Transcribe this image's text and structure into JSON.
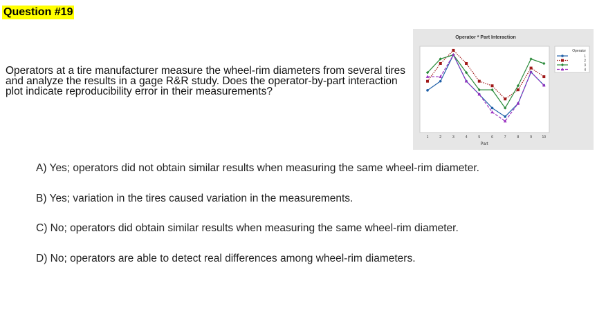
{
  "question_label": "Question #19",
  "question_text": "Operators at a tire manufacturer measure the wheel-rim diameters from several tires and analyze the results in a gage R&R study. Does the operator-by-part interaction plot indicate reproducibility error in their measurements?",
  "answers": [
    "A) Yes; operators did not obtain similar results when measuring the same wheel-rim diameter.",
    "B) Yes; variation in the tires caused variation in the measurements.",
    "C) No; operators did obtain similar results when measuring the same wheel-rim diameter.",
    "D) No; operators are able to detect real differences among wheel-rim diameters."
  ],
  "chart_data": {
    "type": "line",
    "title": "Operator * Part Interaction",
    "xlabel": "Part",
    "ylabel": "",
    "categories": [
      "1",
      "2",
      "3",
      "4",
      "5",
      "6",
      "7",
      "8",
      "9",
      "10"
    ],
    "ylim": [
      0,
      19
    ],
    "y_ticks_shown": false,
    "legend_title": "Operator",
    "legend_position": "right",
    "series": [
      {
        "name": "1",
        "color": "#1f5fa8",
        "dash": "solid",
        "marker": "circle",
        "values": [
          9.3,
          11.3,
          17.1,
          11.3,
          8.4,
          5.4,
          3.5,
          6.4,
          13.3,
          10.4
        ]
      },
      {
        "name": "2",
        "color": "#a01818",
        "dash": "dotted",
        "marker": "square",
        "values": [
          11.3,
          15.2,
          18.1,
          15.2,
          11.3,
          10.3,
          7.4,
          9.4,
          14.2,
          12.3
        ]
      },
      {
        "name": "3",
        "color": "#2a8a3a",
        "dash": "solid",
        "marker": "diamond",
        "values": [
          13.2,
          16.2,
          17.1,
          13.2,
          9.4,
          9.4,
          5.4,
          10.3,
          16.2,
          15.2
        ]
      },
      {
        "name": "4",
        "color": "#9a2fc0",
        "dash": "dashed",
        "marker": "triangle",
        "values": [
          12.3,
          12.3,
          17.1,
          11.3,
          8.4,
          4.5,
          2.5,
          6.4,
          13.3,
          10.4
        ]
      }
    ]
  }
}
